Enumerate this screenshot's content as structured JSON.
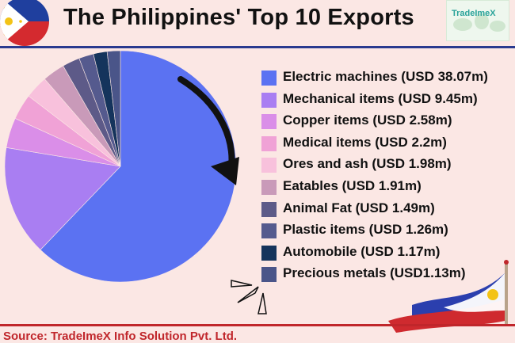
{
  "header": {
    "title": "The Philippines' Top 10 Exports",
    "logo_text": "TradeImeX"
  },
  "footer": {
    "source": "Source: TradeImeX Info Solution Pvt. Ltd."
  },
  "colors": {
    "background": "#fbe7e4",
    "rule_top": "#2a3a8f",
    "rule_bottom": "#c0262b"
  },
  "chart_data": {
    "type": "pie",
    "title": "The Philippines' Top 10 Exports",
    "labels": [
      "Electric machines (USD 38.07m)",
      "Mechanical items (USD 9.45m)",
      "Copper items (USD 2.58m)",
      "Medical items (USD 2.2m)",
      "Ores and ash (USD 1.98m)",
      "Eatables (USD 1.91m)",
      "Animal Fat (USD 1.49m)",
      "Plastic items (USD 1.26m)",
      "Automobile (USD 1.17m)",
      "Precious metals (USD1.13m)"
    ],
    "values": [
      38.07,
      9.45,
      2.58,
      2.2,
      1.98,
      1.91,
      1.49,
      1.26,
      1.17,
      1.13
    ],
    "colors": [
      "#5b72f2",
      "#a97ef2",
      "#da8ee8",
      "#f0a2d6",
      "#f8c1dc",
      "#c99ab9",
      "#5d5a88",
      "#555a8e",
      "#15345c",
      "#4a5589"
    ],
    "legend_position": "right"
  }
}
